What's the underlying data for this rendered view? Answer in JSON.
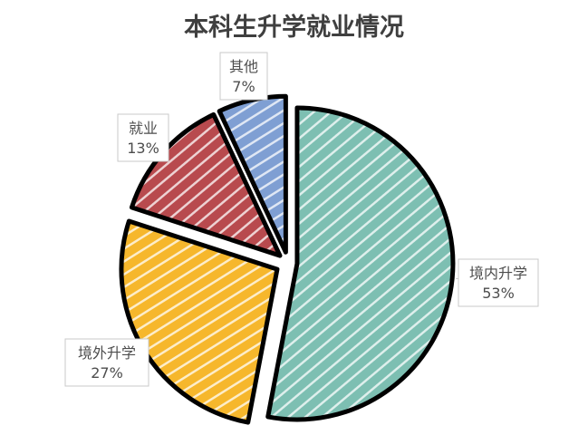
{
  "chart_data": {
    "type": "pie",
    "title": "本科生升学就业情况",
    "categories": [
      "境内升学",
      "境外升学",
      "就业",
      "其他"
    ],
    "values": [
      53,
      27,
      13,
      7
    ],
    "value_labels": [
      "53%",
      "27%",
      "13%",
      "7%"
    ],
    "colors": [
      "#7dbfb2",
      "#f6b72c",
      "#b84a4e",
      "#7f9fd3"
    ],
    "exploded": true,
    "hand_drawn_style": true
  }
}
